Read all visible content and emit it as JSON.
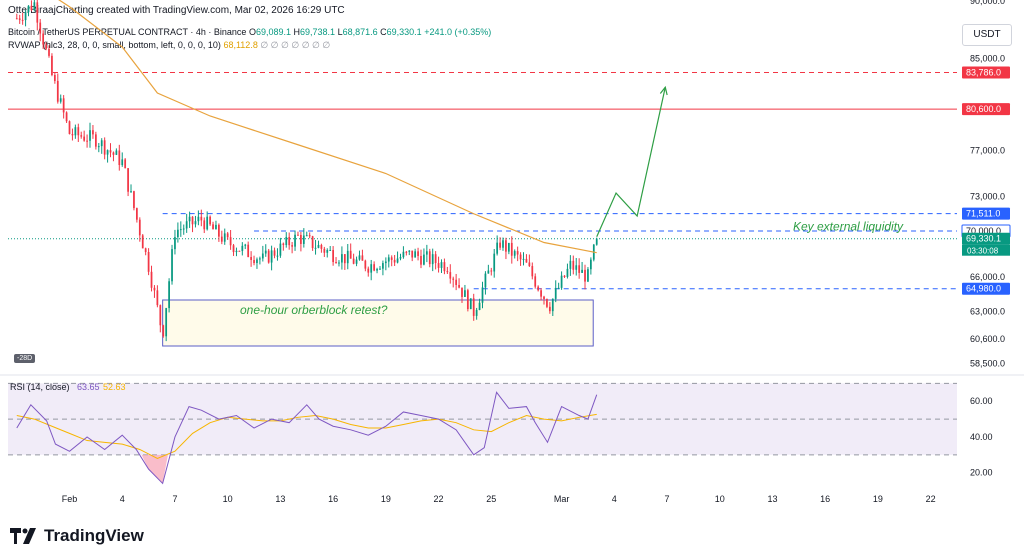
{
  "header": {
    "published": "OtterBiraajCharting created with TradingView.com, Mar 02, 2026 16:29 UTC"
  },
  "legend": {
    "symbol": "Bitcoin / TetherUS PERPETUAL CONTRACT · 4h · Binance",
    "open_label": "O",
    "open": "69,089.1",
    "high_label": "H",
    "high": "69,738.1",
    "low_label": "L",
    "low": "68,871.6",
    "close_label": "C",
    "close": "69,330.1",
    "change": "+241.0 (+0.35%)",
    "rvwap_label": "RVWAP (hlc3, 28, 0, 0, small, bottom, left, 0, 0, 0, 10)",
    "rvwap_value": "68,112.8",
    "rvwap_extras": "∅ ∅ ∅ ∅ ∅ ∅ ∅"
  },
  "currency": "USDT",
  "badge": "-28D",
  "brand": "TradingView",
  "colors": {
    "up": "#089981",
    "down": "#f23645",
    "rvwap": "#e8a33d",
    "rsi": "#7e57c2",
    "rsi_ma": "#f7b500",
    "resistance": "#f23645",
    "level_blue": "#2962ff",
    "arrow": "#2e9e44",
    "box": "#5b5fc7"
  },
  "annotations": {
    "box_label": "one-hour orberblock retest?",
    "liquidity_label": "Key external liquidity"
  },
  "price_tags": [
    {
      "label": "83,786.0",
      "value": 83786,
      "color": "#f23645"
    },
    {
      "label": "80,600.0",
      "value": 80600,
      "color": "#f23645"
    },
    {
      "label": "71,511.0",
      "value": 71511,
      "color": "#2962ff"
    },
    {
      "label": "70,000.0",
      "value": 70000,
      "color": "#ffffff",
      "text_color": "#131722"
    },
    {
      "label": "69,330.1",
      "value": 69330.1,
      "color": "#089981"
    },
    {
      "label": "64,980.0",
      "value": 64980,
      "color": "#2962ff"
    }
  ],
  "countdown": "03:30:08",
  "rsi_legend": {
    "label": "RSI (14, close)",
    "value": "63.65",
    "ma_value": "52.63"
  },
  "chart_data": [
    {
      "type": "candlestick",
      "title": "Bitcoin / TetherUS PERPETUAL CONTRACT · 4h · Binance",
      "y_ticks": [
        58500,
        60600,
        63000,
        66000,
        70000,
        73000,
        77000,
        80600,
        85000,
        90000
      ],
      "y_tick_labels": [
        "58,500.0",
        "60,600.0",
        "63,000.0",
        "66,000.0",
        "70,000.0",
        "73,000.0",
        "77,000.0",
        "80,600.0",
        "85,000.0",
        "90,000.0"
      ],
      "x_ticks": [
        "Feb",
        "4",
        "7",
        "10",
        "13",
        "16",
        "19",
        "22",
        "25",
        "Mar",
        "4",
        "7",
        "10",
        "13",
        "16",
        "19",
        "22"
      ],
      "x_tick_days": [
        32,
        35,
        38,
        41,
        44,
        47,
        50,
        53,
        56,
        60,
        63,
        66,
        69,
        72,
        75,
        78,
        81
      ],
      "x_range_days": [
        28.5,
        82.5
      ],
      "horizontal_levels": [
        {
          "value": 83786,
          "style": "dashed",
          "color": "red"
        },
        {
          "value": 80600,
          "style": "solid",
          "color": "red"
        },
        {
          "value": 71511,
          "style": "dashed",
          "color": "blue"
        },
        {
          "value": 70000,
          "style": "dashed",
          "color": "blue"
        },
        {
          "value": 64980,
          "style": "dashed",
          "color": "blue"
        }
      ],
      "order_block": {
        "day_start": 37.3,
        "day_end": 61.8,
        "price_low": 60000,
        "price_high": 64000
      },
      "projection_path": [
        [
          62.0,
          69500
        ],
        [
          63.1,
          73300
        ],
        [
          64.3,
          71300
        ],
        [
          65.9,
          82500
        ]
      ],
      "key_points": [
        {
          "day": 29.0,
          "price": 88500
        },
        {
          "day": 30.0,
          "price": 89800
        },
        {
          "day": 31.0,
          "price": 83500
        },
        {
          "day": 32.0,
          "price": 78500
        },
        {
          "day": 33.5,
          "price": 78000
        },
        {
          "day": 35.0,
          "price": 76000
        },
        {
          "day": 36.5,
          "price": 67000
        },
        {
          "day": 37.3,
          "price": 61000
        },
        {
          "day": 38.0,
          "price": 70000
        },
        {
          "day": 39.5,
          "price": 71000
        },
        {
          "day": 41.0,
          "price": 69000
        },
        {
          "day": 43.0,
          "price": 67500
        },
        {
          "day": 45.0,
          "price": 69500
        },
        {
          "day": 47.0,
          "price": 68000
        },
        {
          "day": 49.0,
          "price": 67000
        },
        {
          "day": 51.5,
          "price": 68000
        },
        {
          "day": 53.5,
          "price": 67000
        },
        {
          "day": 55.0,
          "price": 63000
        },
        {
          "day": 56.5,
          "price": 69000
        },
        {
          "day": 58.0,
          "price": 67000
        },
        {
          "day": 59.3,
          "price": 63500
        },
        {
          "day": 60.5,
          "price": 67000
        },
        {
          "day": 61.5,
          "price": 66000
        },
        {
          "day": 62.0,
          "price": 69330
        }
      ],
      "rvwap": [
        {
          "day": 29.0,
          "price": 92500
        },
        {
          "day": 32.0,
          "price": 89500
        },
        {
          "day": 35.0,
          "price": 86000
        },
        {
          "day": 37.0,
          "price": 82000
        },
        {
          "day": 40.0,
          "price": 80000
        },
        {
          "day": 45.0,
          "price": 77500
        },
        {
          "day": 50.0,
          "price": 75000
        },
        {
          "day": 55.0,
          "price": 71500
        },
        {
          "day": 59.0,
          "price": 69000
        },
        {
          "day": 62.0,
          "price": 68112.8
        }
      ]
    },
    {
      "type": "line",
      "title": "RSI (14, close)",
      "y_ticks": [
        20,
        40,
        60
      ],
      "y_tick_labels": [
        "20.00",
        "40.00",
        "60.00"
      ],
      "bands": [
        30,
        50,
        70
      ],
      "y_range": [
        12,
        73
      ],
      "series": [
        {
          "name": "RSI",
          "points": [
            [
              29.0,
              45
            ],
            [
              29.8,
              58
            ],
            [
              30.7,
              49
            ],
            [
              31.2,
              36
            ],
            [
              32.0,
              32
            ],
            [
              33.0,
              40
            ],
            [
              34.0,
              33
            ],
            [
              35.0,
              41
            ],
            [
              35.8,
              33
            ],
            [
              36.5,
              22
            ],
            [
              37.3,
              14
            ],
            [
              38.0,
              40
            ],
            [
              38.8,
              57
            ],
            [
              39.5,
              55
            ],
            [
              40.5,
              50
            ],
            [
              41.5,
              52
            ],
            [
              42.5,
              45
            ],
            [
              43.5,
              50
            ],
            [
              44.5,
              48
            ],
            [
              45.5,
              58
            ],
            [
              46.2,
              50
            ],
            [
              47.0,
              46
            ],
            [
              48.0,
              44
            ],
            [
              49.0,
              41
            ],
            [
              50.0,
              46
            ],
            [
              51.0,
              54
            ],
            [
              52.0,
              52
            ],
            [
              53.0,
              50
            ],
            [
              54.0,
              44
            ],
            [
              55.0,
              30
            ],
            [
              55.6,
              34
            ],
            [
              56.3,
              65
            ],
            [
              57.0,
              56
            ],
            [
              58.0,
              57
            ],
            [
              58.5,
              48
            ],
            [
              59.2,
              37
            ],
            [
              60.0,
              57
            ],
            [
              61.0,
              52
            ],
            [
              61.5,
              50
            ],
            [
              62.0,
              63.65
            ]
          ]
        },
        {
          "name": "RSI MA",
          "points": [
            [
              29.0,
              52
            ],
            [
              30.0,
              50
            ],
            [
              31.0,
              46
            ],
            [
              32.0,
              42
            ],
            [
              33.0,
              38
            ],
            [
              34.0,
              37
            ],
            [
              35.0,
              36
            ],
            [
              36.0,
              33
            ],
            [
              37.0,
              28
            ],
            [
              38.0,
              32
            ],
            [
              39.0,
              42
            ],
            [
              40.0,
              48
            ],
            [
              41.0,
              51
            ],
            [
              42.0,
              50
            ],
            [
              43.0,
              49
            ],
            [
              44.0,
              49
            ],
            [
              45.0,
              51
            ],
            [
              46.0,
              52
            ],
            [
              47.0,
              50
            ],
            [
              48.0,
              47
            ],
            [
              49.0,
              45
            ],
            [
              50.0,
              45
            ],
            [
              51.0,
              47
            ],
            [
              52.0,
              49
            ],
            [
              53.0,
              50
            ],
            [
              54.0,
              48
            ],
            [
              55.0,
              44
            ],
            [
              56.0,
              43
            ],
            [
              57.0,
              48
            ],
            [
              58.0,
              52
            ],
            [
              59.0,
              50
            ],
            [
              60.0,
              49
            ],
            [
              61.0,
              51
            ],
            [
              62.0,
              52.63
            ]
          ]
        }
      ]
    }
  ]
}
